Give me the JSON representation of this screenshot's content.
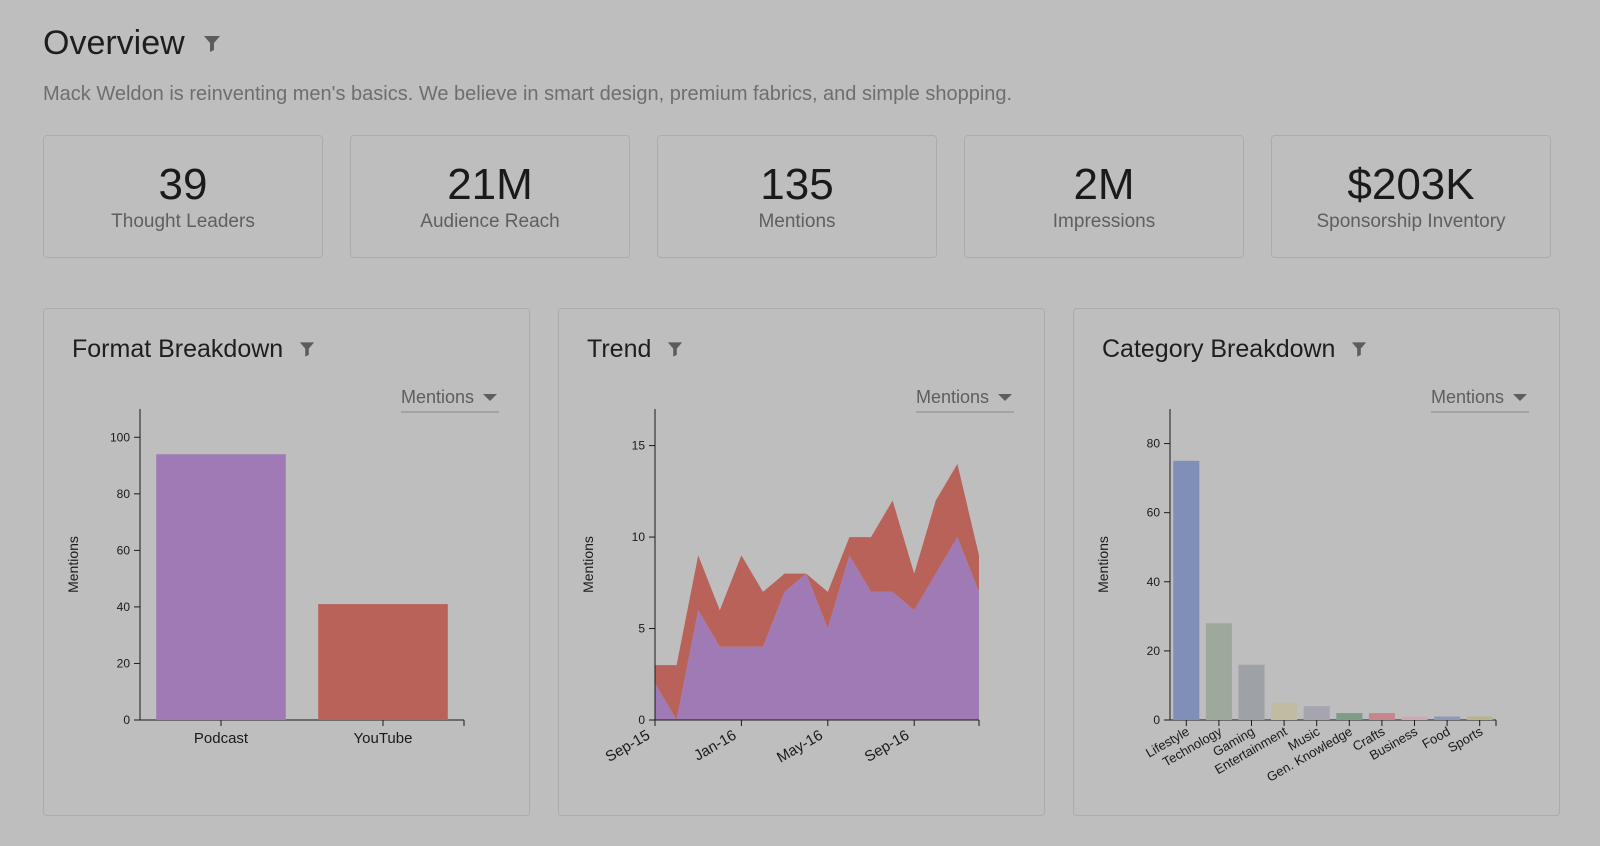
{
  "header": {
    "title": "Overview",
    "subtitle": "Mack Weldon is reinventing men's basics. We believe in smart design, premium fabrics, and simple shopping."
  },
  "stats": [
    {
      "value": "39",
      "label": "Thought Leaders"
    },
    {
      "value": "21M",
      "label": "Audience Reach"
    },
    {
      "value": "135",
      "label": "Mentions"
    },
    {
      "value": "2M",
      "label": "Impressions"
    },
    {
      "value": "$203K",
      "label": "Sponsorship Inventory"
    }
  ],
  "panels": {
    "format": {
      "title": "Format Breakdown",
      "metric": "Mentions"
    },
    "trend": {
      "title": "Trend",
      "metric": "Mentions"
    },
    "category": {
      "title": "Category Breakdown",
      "metric": "Mentions"
    }
  },
  "icons": {
    "filter": "filter-icon",
    "dropdown": "chevron-down-icon"
  },
  "colors": {
    "background": "#bebebe",
    "podcast": "#a07ab5",
    "youtube": "#b9625a"
  },
  "chart_data": [
    {
      "type": "bar",
      "categories": [
        "Podcast",
        "YouTube"
      ],
      "values": [
        94,
        41
      ],
      "colors": [
        "#a07ab5",
        "#b9625a"
      ],
      "ylabel": "Mentions",
      "ylim": [
        0,
        110
      ],
      "yticks": [
        0,
        20,
        40,
        60,
        80,
        100
      ]
    },
    {
      "type": "area",
      "stacked": true,
      "x": [
        "2015-09",
        "2015-10",
        "2015-11",
        "2015-12",
        "2016-01",
        "2016-02",
        "2016-03",
        "2016-04",
        "2016-05",
        "2016-06",
        "2016-07",
        "2016-08",
        "2016-09",
        "2016-10",
        "2016-11",
        "2016-12"
      ],
      "xtick_labels": [
        "Sep-15",
        "Jan-16",
        "May-16",
        "Sep-16"
      ],
      "series": [
        {
          "values": [
            2,
            0,
            6,
            4,
            4,
            4,
            7,
            8,
            5,
            9,
            7,
            7,
            6,
            8,
            10,
            7
          ],
          "color": "#a07ab5"
        },
        {
          "values": [
            1,
            3,
            3,
            2,
            5,
            3,
            1,
            0,
            2,
            1,
            3,
            5,
            2,
            4,
            4,
            2
          ],
          "color": "#b9625a"
        }
      ],
      "ylabel": "Mentions",
      "ylim": [
        0,
        17
      ],
      "yticks": [
        0,
        5,
        10,
        15
      ]
    },
    {
      "type": "bar",
      "categories": [
        "Lifestyle",
        "Technology",
        "Gaming",
        "Entertainment",
        "Music",
        "Gen. Knowledge",
        "Crafts",
        "Business",
        "Food",
        "Sports"
      ],
      "values": [
        75,
        28,
        16,
        5,
        4,
        2,
        2,
        1,
        1,
        1
      ],
      "colors": [
        "#7f8fb7",
        "#9ea89b",
        "#9ea2a7",
        "#bfbca3",
        "#a6a4ae",
        "#7f9c87",
        "#c7858d",
        "#cfa9b2",
        "#8f98b8",
        "#b8b58c"
      ],
      "ylabel": "Mentions",
      "ylim": [
        0,
        90
      ],
      "yticks": [
        0,
        20,
        40,
        60,
        80
      ]
    }
  ]
}
